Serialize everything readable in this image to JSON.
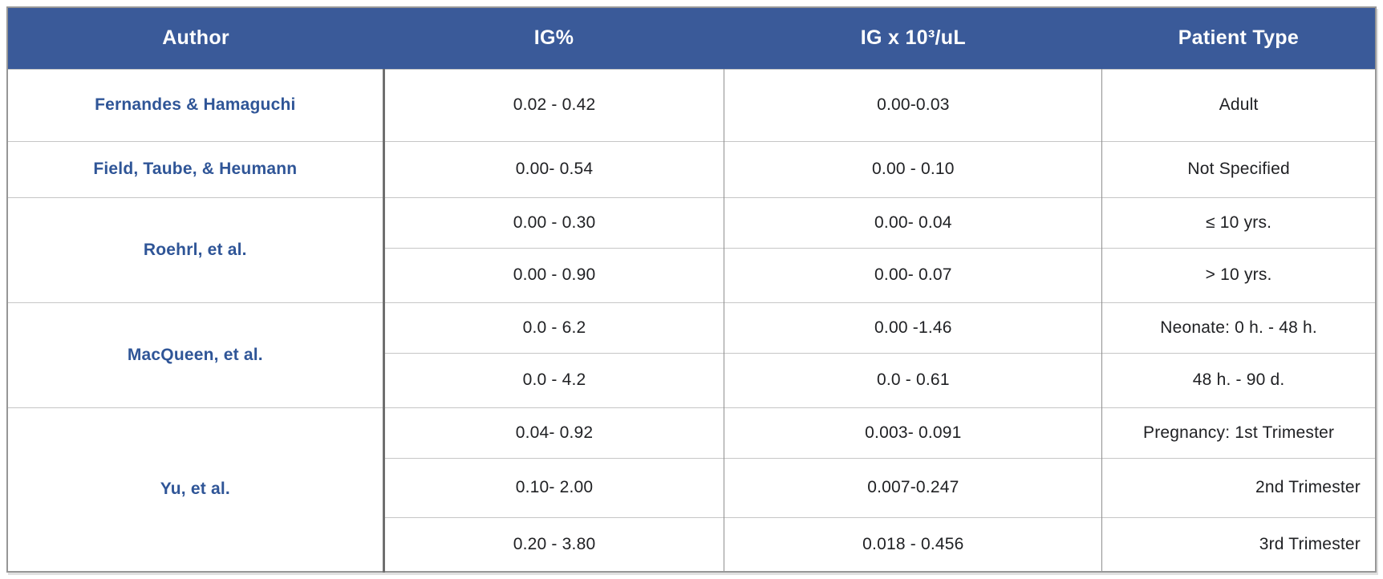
{
  "table": {
    "colors": {
      "header_bg": "#3a5a99",
      "header_text": "#ffffff",
      "author_text": "#2f5597",
      "body_text": "#202124",
      "border_thick": "#6f6f6f",
      "border_light": "#c6c6c6"
    },
    "columns": [
      {
        "label": "Author"
      },
      {
        "label": "IG%"
      },
      {
        "label": "IG x 10³/uL"
      },
      {
        "label": "Patient Type"
      }
    ],
    "groups": [
      {
        "author": "Fernandes & Hamaguchi",
        "rows": [
          {
            "ig_percent": "0.02 - 0.42",
            "ig_abs": "0.00-0.03",
            "patient_type": "Adult"
          }
        ]
      },
      {
        "author": "Field, Taube, & Heumann",
        "rows": [
          {
            "ig_percent": "0.00- 0.54",
            "ig_abs": "0.00 - 0.10",
            "patient_type": "Not Specified"
          }
        ]
      },
      {
        "author": "Roehrl, et al.",
        "rows": [
          {
            "ig_percent": "0.00 - 0.30",
            "ig_abs": "0.00- 0.04",
            "patient_type": "≤ 10 yrs."
          },
          {
            "ig_percent": "0.00 - 0.90",
            "ig_abs": "0.00- 0.07",
            "patient_type": "> 10 yrs."
          }
        ]
      },
      {
        "author": "MacQueen, et al.",
        "rows": [
          {
            "ig_percent": "0.0 - 6.2",
            "ig_abs": "0.00 -1.46",
            "patient_type": "Neonate: 0 h. - 48 h."
          },
          {
            "ig_percent": "0.0 - 4.2",
            "ig_abs": "0.0 - 0.61",
            "patient_type": "48 h. - 90 d."
          }
        ]
      },
      {
        "author": "Yu, et al.",
        "rows": [
          {
            "ig_percent": "0.04- 0.92",
            "ig_abs": "0.003- 0.091",
            "patient_type": "Pregnancy: 1st Trimester"
          },
          {
            "ig_percent": "0.10- 2.00",
            "ig_abs": "0.007-0.247",
            "patient_type": "2nd Trimester"
          },
          {
            "ig_percent": "0.20 - 3.80",
            "ig_abs": "0.018 - 0.456",
            "patient_type": "3rd Trimester"
          }
        ]
      }
    ]
  }
}
